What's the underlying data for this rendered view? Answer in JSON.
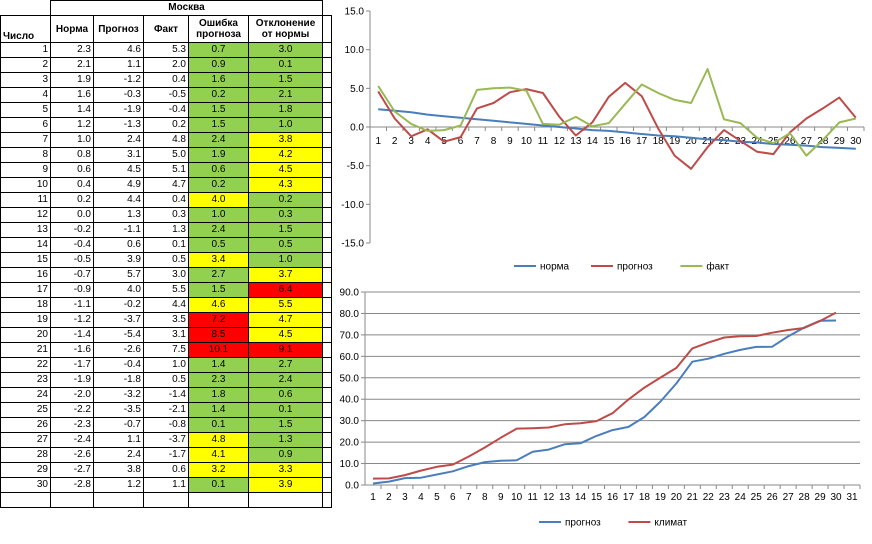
{
  "table": {
    "title": "Москва",
    "headers": {
      "day": "Число",
      "norm": "Норма",
      "forecast": "Прогноз",
      "actual": "Факт",
      "error": "Ошибка прогноза",
      "deviation": "Отклонение от нормы"
    },
    "rows": [
      {
        "day": "1",
        "norm": "2.3",
        "forecast": "4.6",
        "actual": "5.3",
        "error": "0.7",
        "deviation": "3.0",
        "error_color": "green",
        "deviation_color": "green"
      },
      {
        "day": "2",
        "norm": "2.1",
        "forecast": "1.1",
        "actual": "2.0",
        "error": "0.9",
        "deviation": "0.1",
        "error_color": "green",
        "deviation_color": "green"
      },
      {
        "day": "3",
        "norm": "1.9",
        "forecast": "-1.2",
        "actual": "0.4",
        "error": "1.6",
        "deviation": "1.5",
        "error_color": "green",
        "deviation_color": "green"
      },
      {
        "day": "4",
        "norm": "1.6",
        "forecast": "-0.3",
        "actual": "-0.5",
        "error": "0.2",
        "deviation": "2.1",
        "error_color": "green",
        "deviation_color": "green"
      },
      {
        "day": "5",
        "norm": "1.4",
        "forecast": "-1.9",
        "actual": "-0.4",
        "error": "1.5",
        "deviation": "1.8",
        "error_color": "green",
        "deviation_color": "green"
      },
      {
        "day": "6",
        "norm": "1.2",
        "forecast": "-1.3",
        "actual": "0.2",
        "error": "1.5",
        "deviation": "1.0",
        "error_color": "green",
        "deviation_color": "green"
      },
      {
        "day": "7",
        "norm": "1.0",
        "forecast": "2.4",
        "actual": "4.8",
        "error": "2.4",
        "deviation": "3.8",
        "error_color": "green",
        "deviation_color": "yellow"
      },
      {
        "day": "8",
        "norm": "0.8",
        "forecast": "3.1",
        "actual": "5.0",
        "error": "1.9",
        "deviation": "4.2",
        "error_color": "green",
        "deviation_color": "yellow"
      },
      {
        "day": "9",
        "norm": "0.6",
        "forecast": "4.5",
        "actual": "5.1",
        "error": "0.6",
        "deviation": "4.5",
        "error_color": "green",
        "deviation_color": "yellow"
      },
      {
        "day": "10",
        "norm": "0.4",
        "forecast": "4.9",
        "actual": "4.7",
        "error": "0.2",
        "deviation": "4.3",
        "error_color": "green",
        "deviation_color": "yellow"
      },
      {
        "day": "11",
        "norm": "0.2",
        "forecast": "4.4",
        "actual": "0.4",
        "error": "4.0",
        "deviation": "0.2",
        "error_color": "yellow",
        "deviation_color": "green"
      },
      {
        "day": "12",
        "norm": "0.0",
        "forecast": "1.3",
        "actual": "0.3",
        "error": "1.0",
        "deviation": "0.3",
        "error_color": "green",
        "deviation_color": "green"
      },
      {
        "day": "13",
        "norm": "-0.2",
        "forecast": "-1.1",
        "actual": "1.3",
        "error": "2.4",
        "deviation": "1.5",
        "error_color": "green",
        "deviation_color": "green"
      },
      {
        "day": "14",
        "norm": "-0.4",
        "forecast": "0.6",
        "actual": "0.1",
        "error": "0.5",
        "deviation": "0.5",
        "error_color": "green",
        "deviation_color": "green"
      },
      {
        "day": "15",
        "norm": "-0.5",
        "forecast": "3.9",
        "actual": "0.5",
        "error": "3.4",
        "deviation": "1.0",
        "error_color": "yellow",
        "deviation_color": "green"
      },
      {
        "day": "16",
        "norm": "-0.7",
        "forecast": "5.7",
        "actual": "3.0",
        "error": "2.7",
        "deviation": "3.7",
        "error_color": "green",
        "deviation_color": "yellow"
      },
      {
        "day": "17",
        "norm": "-0.9",
        "forecast": "4.0",
        "actual": "5.5",
        "error": "1.5",
        "deviation": "6.4",
        "error_color": "green",
        "deviation_color": "red"
      },
      {
        "day": "18",
        "norm": "-1.1",
        "forecast": "-0.2",
        "actual": "4.4",
        "error": "4.6",
        "deviation": "5.5",
        "error_color": "yellow",
        "deviation_color": "yellow"
      },
      {
        "day": "19",
        "norm": "-1.2",
        "forecast": "-3.7",
        "actual": "3.5",
        "error": "7.2",
        "deviation": "4.7",
        "error_color": "red",
        "deviation_color": "yellow"
      },
      {
        "day": "20",
        "norm": "-1.4",
        "forecast": "-5.4",
        "actual": "3.1",
        "error": "8.5",
        "deviation": "4.5",
        "error_color": "red",
        "deviation_color": "yellow"
      },
      {
        "day": "21",
        "norm": "-1.6",
        "forecast": "-2.6",
        "actual": "7.5",
        "error": "10.1",
        "deviation": "9.1",
        "error_color": "red",
        "deviation_color": "red"
      },
      {
        "day": "22",
        "norm": "-1.7",
        "forecast": "-0.4",
        "actual": "1.0",
        "error": "1.4",
        "deviation": "2.7",
        "error_color": "green",
        "deviation_color": "green"
      },
      {
        "day": "23",
        "norm": "-1.9",
        "forecast": "-1.8",
        "actual": "0.5",
        "error": "2.3",
        "deviation": "2.4",
        "error_color": "green",
        "deviation_color": "green"
      },
      {
        "day": "24",
        "norm": "-2.0",
        "forecast": "-3.2",
        "actual": "-1.4",
        "error": "1.8",
        "deviation": "0.6",
        "error_color": "green",
        "deviation_color": "green"
      },
      {
        "day": "25",
        "norm": "-2.2",
        "forecast": "-3.5",
        "actual": "-2.1",
        "error": "1.4",
        "deviation": "0.1",
        "error_color": "green",
        "deviation_color": "green"
      },
      {
        "day": "26",
        "norm": "-2.3",
        "forecast": "-0.7",
        "actual": "-0.8",
        "error": "0.1",
        "deviation": "1.5",
        "error_color": "green",
        "deviation_color": "green"
      },
      {
        "day": "27",
        "norm": "-2.4",
        "forecast": "1.1",
        "actual": "-3.7",
        "error": "4.8",
        "deviation": "1.3",
        "error_color": "yellow",
        "deviation_color": "green"
      },
      {
        "day": "28",
        "norm": "-2.6",
        "forecast": "2.4",
        "actual": "-1.7",
        "error": "4.1",
        "deviation": "0.9",
        "error_color": "yellow",
        "deviation_color": "green"
      },
      {
        "day": "29",
        "norm": "-2.7",
        "forecast": "3.8",
        "actual": "0.6",
        "error": "3.2",
        "deviation": "3.3",
        "error_color": "yellow",
        "deviation_color": "yellow"
      },
      {
        "day": "30",
        "norm": "-2.8",
        "forecast": "1.2",
        "actual": "1.1",
        "error": "0.1",
        "deviation": "3.9",
        "error_color": "green",
        "deviation_color": "yellow"
      }
    ]
  },
  "colors": {
    "green": "#92d050",
    "yellow": "#ffff00",
    "red": "#ff0000",
    "blue": "#4a7ebb",
    "darkred": "#be4b48",
    "olive": "#98b954"
  },
  "chart_data": [
    {
      "type": "line",
      "x": [
        1,
        2,
        3,
        4,
        5,
        6,
        7,
        8,
        9,
        10,
        11,
        12,
        13,
        14,
        15,
        16,
        17,
        18,
        19,
        20,
        21,
        22,
        23,
        24,
        25,
        26,
        27,
        28,
        29,
        30
      ],
      "ylim": [
        -15,
        15
      ],
      "yticks": [
        "15.0",
        "10.0",
        "5.0",
        "0.0",
        "-5.0",
        "-10.0",
        "-15.0"
      ],
      "xticks": [
        "1",
        "2",
        "3",
        "4",
        "5",
        "6",
        "7",
        "8",
        "9",
        "10",
        "11",
        "12",
        "13",
        "14",
        "15",
        "16",
        "17",
        "18",
        "19",
        "20",
        "21",
        "22",
        "23",
        "24",
        "25",
        "26",
        "27",
        "28",
        "29",
        "30"
      ],
      "grid": false,
      "legend": "bottom",
      "series": [
        {
          "name": "норма",
          "color": "#4a7ebb",
          "values": [
            2.3,
            2.1,
            1.9,
            1.6,
            1.4,
            1.2,
            1.0,
            0.8,
            0.6,
            0.4,
            0.2,
            0.0,
            -0.2,
            -0.4,
            -0.5,
            -0.7,
            -0.9,
            -1.1,
            -1.2,
            -1.4,
            -1.6,
            -1.7,
            -1.9,
            -2.0,
            -2.2,
            -2.3,
            -2.4,
            -2.6,
            -2.7,
            -2.8
          ]
        },
        {
          "name": "прогноз",
          "color": "#be4b48",
          "values": [
            4.6,
            1.1,
            -1.2,
            -0.3,
            -1.9,
            -1.3,
            2.4,
            3.1,
            4.5,
            4.9,
            4.4,
            1.3,
            -1.1,
            0.6,
            3.9,
            5.7,
            4.0,
            -0.2,
            -3.7,
            -5.4,
            -2.6,
            -0.4,
            -1.8,
            -3.2,
            -3.5,
            -0.7,
            1.1,
            2.4,
            3.8,
            1.2
          ]
        },
        {
          "name": "факт",
          "color": "#98b954",
          "values": [
            5.3,
            2.0,
            0.4,
            -0.5,
            -0.4,
            0.2,
            4.8,
            5.0,
            5.1,
            4.7,
            0.4,
            0.3,
            1.3,
            0.1,
            0.5,
            3.0,
            5.5,
            4.4,
            3.5,
            3.1,
            7.5,
            1.0,
            0.5,
            -1.4,
            -2.1,
            -0.8,
            -3.7,
            -1.7,
            0.6,
            1.1
          ]
        }
      ]
    },
    {
      "type": "line",
      "x": [
        1,
        2,
        3,
        4,
        5,
        6,
        7,
        8,
        9,
        10,
        11,
        12,
        13,
        14,
        15,
        16,
        17,
        18,
        19,
        20,
        21,
        22,
        23,
        24,
        25,
        26,
        27,
        28,
        29,
        30
      ],
      "ylim": [
        0,
        90
      ],
      "yticks": [
        "90.0",
        "80.0",
        "70.0",
        "60.0",
        "50.0",
        "40.0",
        "30.0",
        "20.0",
        "10.0",
        "0.0"
      ],
      "xticks": [
        "1",
        "2",
        "3",
        "4",
        "5",
        "6",
        "7",
        "8",
        "9",
        "10",
        "11",
        "12",
        "13",
        "14",
        "15",
        "16",
        "17",
        "18",
        "19",
        "20",
        "21",
        "22",
        "23",
        "24",
        "25",
        "26",
        "27",
        "28",
        "29",
        "30",
        "31"
      ],
      "grid": true,
      "legend": "bottom",
      "series": [
        {
          "name": "прогноз",
          "color": "#4a7ebb",
          "values": [
            0.7,
            1.6,
            3.2,
            3.4,
            4.9,
            6.4,
            8.8,
            10.7,
            11.3,
            11.5,
            15.5,
            16.5,
            19.0,
            19.5,
            22.9,
            25.6,
            27.1,
            31.7,
            38.9,
            47.4,
            57.5,
            58.9,
            61.2,
            63.0,
            64.4,
            64.5,
            69.3,
            73.4,
            76.6,
            76.7
          ]
        },
        {
          "name": "климат",
          "color": "#be4b48",
          "values": [
            3.0,
            3.1,
            4.6,
            6.7,
            8.5,
            9.5,
            13.3,
            17.5,
            22.0,
            26.3,
            26.5,
            26.8,
            28.3,
            28.8,
            29.8,
            33.5,
            39.9,
            45.4,
            50.1,
            54.6,
            63.7,
            66.4,
            68.8,
            69.4,
            69.5,
            71.0,
            72.3,
            73.2,
            76.5,
            80.4
          ]
        }
      ]
    }
  ]
}
